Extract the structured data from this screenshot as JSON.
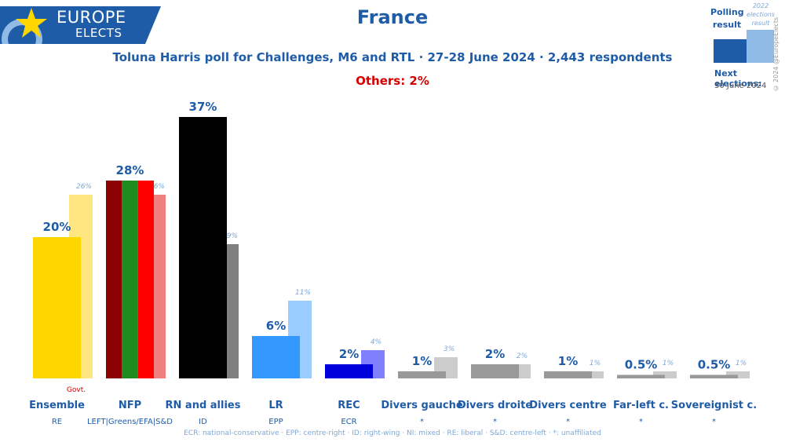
{
  "header": {
    "logo_line1": "EUROPE",
    "logo_line2": "ELECTS",
    "title": "France",
    "subtitle": "Toluna Harris poll for Challenges, M6 and RTL · 27-28 June 2024 · 2,443 respondents",
    "others": "Others: 2%"
  },
  "legend": {
    "poll_label": "Polling result",
    "prev_label": "2022 elections result",
    "copyright": "© 2024 @EuropeElects",
    "next_label": "Next elections:",
    "next_date": "30 June 2024"
  },
  "footnote": "ECR: national-conservative · EPP: centre-right · ID: right-wing · NI: mixed · RE: liberal · S&D: centre-left · *: unaffiliated",
  "colors": {
    "brand_blue": "#1f5ca8",
    "prev_label": "#7ea8d8",
    "others_red": "#d40000"
  },
  "chart_data": {
    "type": "bar",
    "categories": [
      "Ensemble",
      "NFP",
      "RN and allies",
      "LR",
      "REC",
      "Divers gauche",
      "Divers droite",
      "Divers centre",
      "Far-left c.",
      "Sovereignist c."
    ],
    "groups": [
      "RE",
      "LEFT|Greens/EFA|S&D",
      "ID",
      "EPP",
      "ECR",
      "*",
      "*",
      "*",
      "*",
      "*"
    ],
    "notes": [
      "Govt.",
      "",
      "",
      "",
      "",
      "",
      "",
      "",
      "",
      ""
    ],
    "series": [
      {
        "name": "Polling result",
        "values": [
          20,
          28,
          37,
          6,
          2,
          1,
          2,
          1,
          0.5,
          0.5
        ],
        "labels": [
          "20%",
          "28%",
          "37%",
          "6%",
          "2%",
          "1%",
          "2%",
          "1%",
          "0.5%",
          "0.5%"
        ]
      },
      {
        "name": "2022 elections result",
        "values": [
          26,
          26,
          19,
          11,
          4,
          3,
          2,
          1,
          1,
          1
        ],
        "labels": [
          "26%",
          "26%",
          "19%",
          "11%",
          "4%",
          "3%",
          "2%",
          "1%",
          "1%",
          "1%"
        ]
      }
    ],
    "colors_poll": [
      [
        "#ffd700"
      ],
      [
        "#8b0000",
        "#1e8c1e",
        "#ff0000"
      ],
      [
        "#000000"
      ],
      [
        "#3399ff"
      ],
      [
        "#0000dd"
      ],
      [
        "#999999"
      ],
      [
        "#999999"
      ],
      [
        "#999999"
      ],
      [
        "#999999"
      ],
      [
        "#999999"
      ]
    ],
    "colors_prev": [
      "#ffe680",
      "#f08080",
      "#808080",
      "#99ccff",
      "#8080ff",
      "#cccccc",
      "#cccccc",
      "#cccccc",
      "#cccccc",
      "#cccccc"
    ],
    "ylim": [
      0,
      37
    ]
  }
}
